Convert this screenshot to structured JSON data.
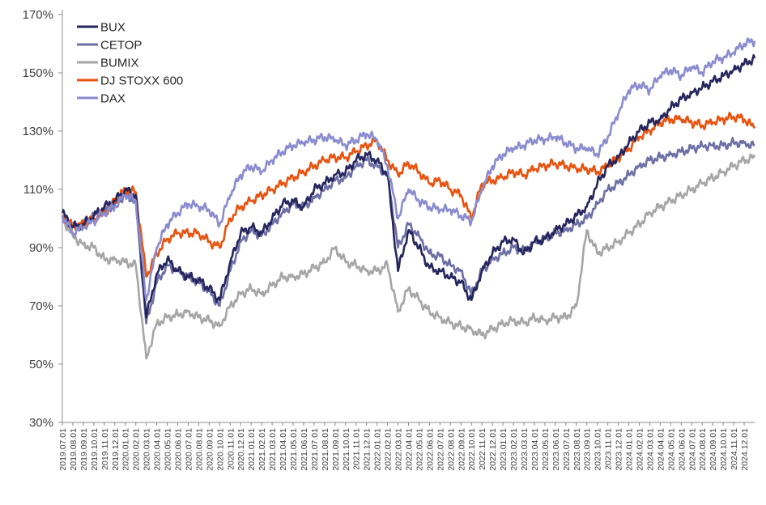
{
  "chart_data": {
    "type": "line",
    "title": "",
    "xlabel": "",
    "ylabel": "",
    "ylim": [
      30,
      170
    ],
    "y_tick_values": [
      30,
      50,
      70,
      90,
      110,
      130,
      150,
      170
    ],
    "y_tick_labels": [
      "30%",
      "50%",
      "70%",
      "90%",
      "110%",
      "130%",
      "150%",
      "170%"
    ],
    "x_tick_labels": [
      "2019.07.01",
      "2019.08.01",
      "2019.09.01",
      "2019.10.01",
      "2019.11.01",
      "2019.12.01",
      "2020.01.01",
      "2020.02.01",
      "2020.03.01",
      "2020.04.01",
      "2020.05.01",
      "2020.06.01",
      "2020.07.01",
      "2020.08.01",
      "2020.09.01",
      "2020.10.01",
      "2020.11.01",
      "2020.12.01",
      "2021.01.01",
      "2021.02.01",
      "2021.03.01",
      "2021.04.01",
      "2021.05.01",
      "2021.06.01",
      "2021.07.01",
      "2021.08.01",
      "2021.09.01",
      "2021.10.01",
      "2021.11.01",
      "2021.12.01",
      "2022.01.01",
      "2022.02.01",
      "2022.03.01",
      "2022.04.01",
      "2022.05.01",
      "2022.06.01",
      "2022.07.01",
      "2022.08.01",
      "2022.09.01",
      "2022.10.01",
      "2022.11.01",
      "2022.12.01",
      "2023.01.01",
      "2023.02.01",
      "2023.03.01",
      "2023.04.01",
      "2023.05.01",
      "2023.06.01",
      "2023.07.01",
      "2023.08.01",
      "2023.09.01",
      "2023.10.01",
      "2023.11.01",
      "2023.12.01",
      "2024.01.01",
      "2024.02.01",
      "2024.03.01",
      "2024.04.01",
      "2024.05.01",
      "2024.06.01",
      "2024.07.01",
      "2024.08.01",
      "2024.09.01",
      "2024.10.01",
      "2024.11.01",
      "2024.12.01"
    ],
    "grid": false,
    "legend_position": "top-left",
    "x": [
      "2019.07",
      "2019.08",
      "2019.09",
      "2019.10",
      "2019.11",
      "2019.12",
      "2020.01",
      "2020.02",
      "2020.03",
      "2020.04",
      "2020.05",
      "2020.06",
      "2020.07",
      "2020.08",
      "2020.09",
      "2020.10",
      "2020.11",
      "2020.12",
      "2021.01",
      "2021.02",
      "2021.03",
      "2021.04",
      "2021.05",
      "2021.06",
      "2021.07",
      "2021.08",
      "2021.09",
      "2021.10",
      "2021.11",
      "2021.12",
      "2022.01",
      "2022.02",
      "2022.03",
      "2022.04",
      "2022.05",
      "2022.06",
      "2022.07",
      "2022.08",
      "2022.09",
      "2022.10",
      "2022.11",
      "2022.12",
      "2023.01",
      "2023.02",
      "2023.03",
      "2023.04",
      "2023.05",
      "2023.06",
      "2023.07",
      "2023.08",
      "2023.09",
      "2023.10",
      "2023.11",
      "2023.12",
      "2024.01",
      "2024.02",
      "2024.03",
      "2024.04",
      "2024.05",
      "2024.06",
      "2024.07",
      "2024.08",
      "2024.09",
      "2024.10",
      "2024.11",
      "2024.12",
      "2025.01"
    ],
    "series": [
      {
        "name": "BUX",
        "color": "#26265e",
        "values": [
          102,
          97,
          98,
          101,
          104,
          106,
          110,
          108,
          66,
          81,
          86,
          82,
          80,
          79,
          76,
          72,
          85,
          95,
          97,
          95,
          100,
          105,
          106,
          104,
          110,
          112,
          115,
          116,
          120,
          122,
          120,
          115,
          82,
          96,
          90,
          83,
          82,
          80,
          78,
          72,
          82,
          88,
          92,
          93,
          88,
          92,
          93,
          96,
          98,
          101,
          104,
          112,
          118,
          121,
          126,
          130,
          133,
          134,
          138,
          141,
          143,
          145,
          147,
          149,
          151,
          153,
          155
        ]
      },
      {
        "name": "CETOP",
        "color": "#6d6fa5",
        "values": [
          101,
          97,
          98,
          101,
          103,
          105,
          108,
          106,
          64,
          78,
          84,
          82,
          80,
          78,
          75,
          70,
          82,
          92,
          96,
          94,
          98,
          102,
          105,
          104,
          107,
          110,
          113,
          114,
          118,
          120,
          118,
          115,
          90,
          98,
          94,
          88,
          87,
          84,
          82,
          74,
          82,
          86,
          88,
          90,
          89,
          92,
          93,
          95,
          96,
          98,
          100,
          105,
          110,
          112,
          115,
          118,
          120,
          121,
          122,
          123,
          124,
          125,
          125,
          125,
          126,
          126,
          125
        ]
      },
      {
        "name": "BUMIX",
        "color": "#a6a6a6",
        "values": [
          100,
          94,
          91,
          90,
          86,
          86,
          85,
          84,
          52,
          64,
          66,
          67,
          68,
          66,
          65,
          63,
          70,
          74,
          76,
          74,
          77,
          80,
          80,
          81,
          83,
          85,
          90,
          85,
          84,
          82,
          82,
          84,
          68,
          76,
          72,
          68,
          66,
          64,
          63,
          62,
          60,
          62,
          64,
          65,
          64,
          66,
          65,
          66,
          66,
          70,
          96,
          88,
          90,
          92,
          95,
          98,
          102,
          104,
          106,
          108,
          110,
          112,
          114,
          116,
          118,
          120,
          121
        ]
      },
      {
        "name": "DJ STOXX 600",
        "color": "#e8530f",
        "values": [
          101,
          97,
          98,
          100,
          102,
          106,
          110,
          109,
          80,
          88,
          93,
          95,
          95,
          95,
          92,
          90,
          100,
          104,
          106,
          108,
          110,
          112,
          114,
          116,
          118,
          120,
          121,
          121,
          123,
          125,
          127,
          120,
          115,
          119,
          116,
          112,
          113,
          110,
          108,
          100,
          112,
          113,
          114,
          116,
          115,
          117,
          118,
          119,
          118,
          117,
          117,
          116,
          118,
          121,
          124,
          128,
          130,
          133,
          134,
          134,
          133,
          132,
          133,
          134,
          135,
          134,
          131
        ]
      },
      {
        "name": "DAX",
        "color": "#8a8cd0",
        "values": [
          101,
          95,
          97,
          99,
          102,
          104,
          108,
          106,
          72,
          90,
          98,
          102,
          105,
          104,
          103,
          98,
          108,
          115,
          118,
          116,
          120,
          123,
          125,
          126,
          127,
          128,
          127,
          125,
          127,
          129,
          127,
          118,
          100,
          110,
          106,
          104,
          103,
          103,
          101,
          99,
          110,
          118,
          122,
          124,
          125,
          127,
          127,
          128,
          126,
          124,
          124,
          122,
          128,
          136,
          144,
          146,
          144,
          149,
          151,
          149,
          152,
          150,
          154,
          155,
          157,
          160,
          161
        ]
      }
    ]
  }
}
